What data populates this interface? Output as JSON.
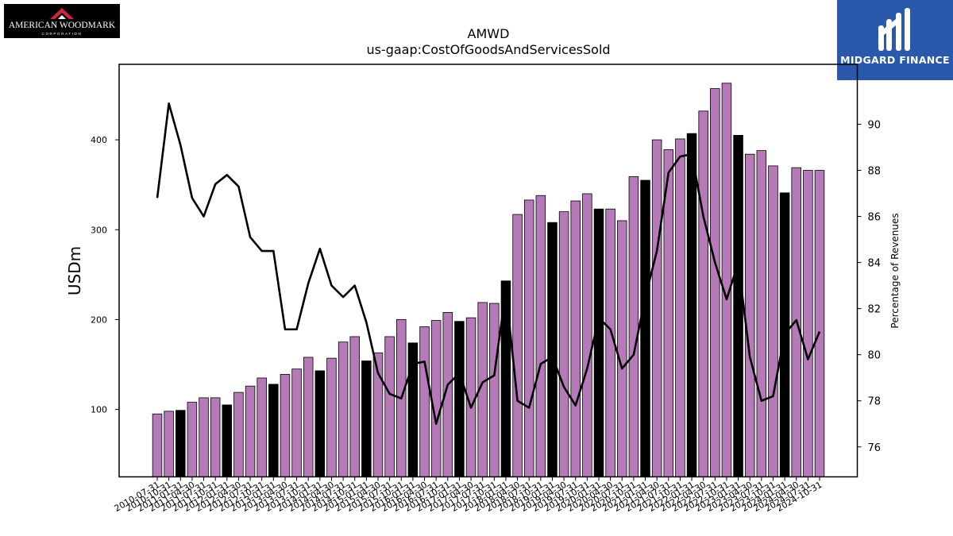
{
  "logos": {
    "left": {
      "name": "AMERICAN WOODMARK",
      "sub": "CORPORATION",
      "icon": "house-roof-icon"
    },
    "right": {
      "name": "MIDGARD FINANCE",
      "icon": "midgard-m-icon",
      "color": "#2a59ab"
    }
  },
  "chart_data": {
    "type": "bar",
    "title": "AMWD",
    "subtitle": "us-gaap:CostOfGoodsAndServicesSold",
    "ylabel": "USDm",
    "y2label": "Percentage of Revenues",
    "ylim": [
      25,
      484
    ],
    "y2lim": [
      74.7,
      92.6
    ],
    "yticks": [
      100,
      200,
      300,
      400
    ],
    "y2ticks": [
      76,
      78,
      80,
      82,
      84,
      86,
      88,
      90
    ],
    "categories": [
      "2010-07-31",
      "2010-10-31",
      "2011-01-31",
      "2011-04-30",
      "2011-07-31",
      "2011-10-31",
      "2012-01-31",
      "2012-04-30",
      "2012-07-31",
      "2012-10-31",
      "2013-01-31",
      "2013-04-30",
      "2013-07-31",
      "2013-10-31",
      "2014-01-31",
      "2014-04-30",
      "2014-07-31",
      "2014-10-31",
      "2015-01-31",
      "2015-04-30",
      "2015-07-31",
      "2015-10-31",
      "2016-01-31",
      "2016-04-30",
      "2016-07-31",
      "2016-10-31",
      "2017-01-31",
      "2017-04-30",
      "2017-07-31",
      "2017-10-31",
      "2018-01-31",
      "2018-04-30",
      "2018-07-31",
      "2018-10-31",
      "2019-01-31",
      "2019-04-30",
      "2019-07-31",
      "2019-10-31",
      "2020-01-31",
      "2020-04-30",
      "2020-07-31",
      "2020-10-31",
      "2021-01-31",
      "2021-04-30",
      "2021-07-31",
      "2021-10-31",
      "2022-01-31",
      "2022-04-30",
      "2022-07-31",
      "2022-10-31",
      "2023-01-31",
      "2023-04-30",
      "2023-07-31",
      "2023-10-31",
      "2024-01-31",
      "2024-04-30",
      "2024-07-31",
      "2024-10-31"
    ],
    "xticklabels": [
      "2010-07-31",
      "2010-10-31",
      "2011-01-31",
      "2011-04-30",
      "2011-07-31",
      "2011-10-31",
      "2012-01-31",
      "2012-04-30",
      "2012-07-31",
      "2012-10-31",
      "2013-01-31",
      "2013-04-30",
      "2013-07-31",
      "2013-10-31",
      "2014-01-31",
      "2014-04-30",
      "2014-07-31",
      "2014-10-31",
      "2015-01-31",
      "2015-04-30",
      "2015-07-31",
      "2015-10-31",
      "2016-01-31",
      "2016-04-30",
      "2016-07-31",
      "2016-10-31",
      "2017-01-31",
      "2017-04-30",
      "2017-07-31",
      "2017-10-31",
      "2018-01-31",
      "2018-04-30",
      "2018-07-31",
      "2018-10-31",
      "2019-01-31",
      "2019-04-30",
      "2019-07-31",
      "2019-10-31",
      "2020-01-31",
      "2020-04-30",
      "2020-07-31",
      "2020-10-31",
      "2021-01-31",
      "2021-04-30",
      "2021-07-31",
      "2021-10-31",
      "2022-01-31",
      "2022-04-30",
      "2022-07-31",
      "2022-10-31",
      "2023-01-31",
      "2023-04-30",
      "2023-07-31",
      "2023-10-31",
      "2024-01-31",
      "2024-04-30",
      "2024-07-31",
      "2024-10-31"
    ],
    "series": [
      {
        "kind": "bar",
        "axis": "left",
        "values": [
          95,
          98,
          99,
          108,
          113,
          113,
          105,
          119,
          126,
          135,
          128,
          139,
          145,
          158,
          143,
          157,
          175,
          181,
          154,
          163,
          181,
          200,
          174,
          192,
          199,
          208,
          198,
          202,
          219,
          218,
          243,
          317,
          333,
          338,
          308,
          320,
          332,
          340,
          323,
          323,
          310,
          359,
          355,
          400,
          389,
          401,
          407,
          432,
          457,
          463,
          405,
          384,
          388,
          371,
          341,
          369,
          366,
          366
        ],
        "highlight": [
          2,
          6,
          10,
          14,
          18,
          22,
          26,
          30,
          34,
          38,
          42,
          46,
          50,
          54
        ],
        "color": "#b57ab7",
        "highlight_color": "#000000"
      },
      {
        "kind": "line",
        "axis": "right",
        "values": [
          86.8,
          90.9,
          89.1,
          86.8,
          86.0,
          87.4,
          87.8,
          87.3,
          85.1,
          84.5,
          84.5,
          81.1,
          81.1,
          83.1,
          84.6,
          83.0,
          82.5,
          83.0,
          81.4,
          79.2,
          78.3,
          78.1,
          79.6,
          79.7,
          77.0,
          78.7,
          79.2,
          77.7,
          78.8,
          79.1,
          82.8,
          78.0,
          77.7,
          79.6,
          79.9,
          78.6,
          77.8,
          79.4,
          81.6,
          81.1,
          79.4,
          80.0,
          82.5,
          84.5,
          87.9,
          88.6,
          88.7,
          86.0,
          84.0,
          82.4,
          84.0,
          79.9,
          78.0,
          78.2,
          80.9,
          81.5,
          79.8,
          81.0
        ],
        "color": "#000000"
      }
    ],
    "grid": false,
    "legend": "none"
  }
}
